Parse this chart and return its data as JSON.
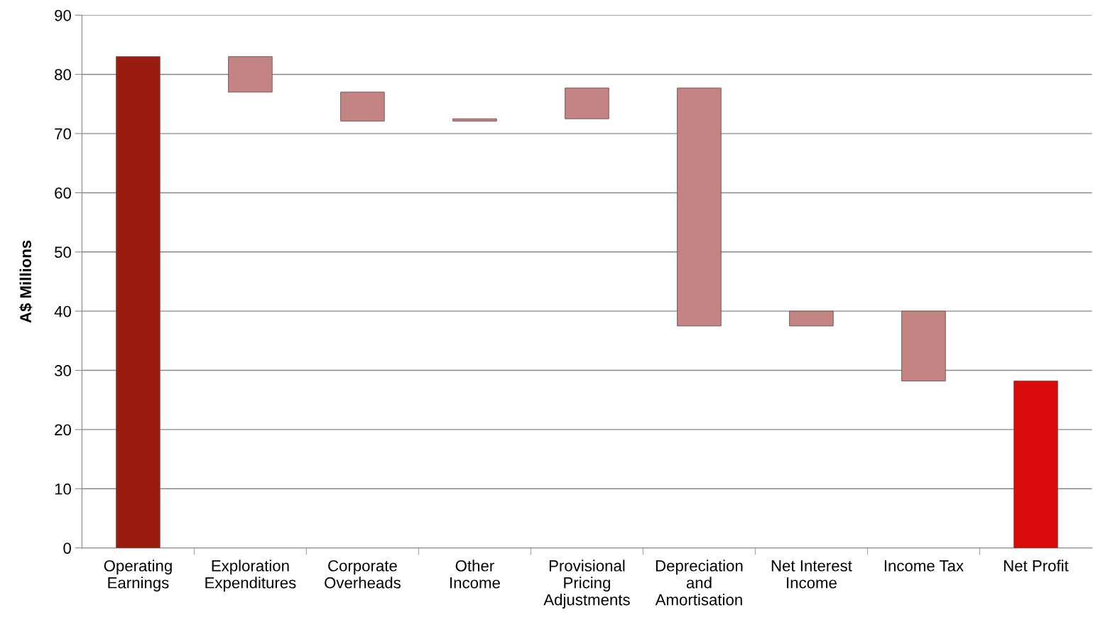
{
  "chart_data": {
    "type": "bar",
    "ylabel": "A$ Millions",
    "categories": [
      "Operating\nEarnings",
      "Exploration\nExpenditures",
      "Corporate\nOverheads",
      "Other\nIncome",
      "Provisional\nPricing\nAdjustments",
      "Depreciation\nand\nAmortisation",
      "Net Interest\nIncome",
      "Income Tax",
      "Net Profit"
    ],
    "values": [
      83.0,
      -6.0,
      -4.9,
      0.4,
      5.2,
      -40.2,
      2.5,
      -11.8,
      28.2
    ],
    "base": [
      0,
      83.0,
      77.0,
      72.1,
      72.5,
      77.7,
      37.5,
      40.0,
      0
    ],
    "colors": [
      "#9a1c10",
      "#c48484",
      "#c48484",
      "#c48484",
      "#c48484",
      "#c48484",
      "#c48484",
      "#c48484",
      "#d80a0a"
    ],
    "ylim": [
      0,
      90
    ],
    "yticks": [
      0,
      10,
      20,
      30,
      40,
      50,
      60,
      70,
      80,
      90
    ],
    "grid": "y",
    "legend": false
  }
}
